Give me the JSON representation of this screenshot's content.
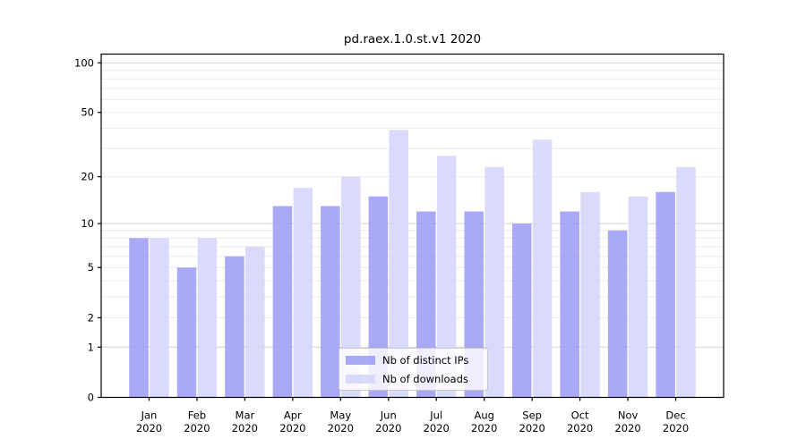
{
  "chart_data": {
    "type": "bar",
    "title": "pd.raex.1.0.st.v1 2020",
    "categories": [
      "Jan",
      "Feb",
      "Mar",
      "Apr",
      "May",
      "Jun",
      "Jul",
      "Aug",
      "Sep",
      "Oct",
      "Nov",
      "Dec"
    ],
    "category_year": "2020",
    "series": [
      {
        "name": "Nb of distinct IPs",
        "color": "#9a9af6",
        "values": [
          8,
          5,
          6,
          13,
          13,
          15,
          12,
          12,
          10,
          12,
          9,
          16
        ]
      },
      {
        "name": "Nb of downloads",
        "color": "#d3d3fa",
        "values": [
          8,
          8,
          7,
          17,
          20,
          39,
          27,
          23,
          34,
          16,
          15,
          23
        ]
      }
    ],
    "yscale": "log10(1+y)",
    "ylim": [
      0,
      113
    ],
    "yticks": [
      0,
      1,
      2,
      5,
      10,
      20,
      50,
      100
    ],
    "major_gridlines": [
      1,
      10,
      100
    ],
    "minor_gridlines": [
      2,
      3,
      4,
      5,
      6,
      7,
      8,
      9,
      20,
      30,
      40,
      50,
      60,
      70,
      80,
      90
    ],
    "grid": true,
    "legend_position": "lower center inside",
    "colors": {
      "major_grid": "#d4d4d4",
      "minor_grid": "#ececec",
      "axis": "#000000",
      "text": "#000000",
      "bar_opacity": 0.85,
      "legend_border": "#c9c9c9",
      "background": "#ffffff"
    }
  }
}
